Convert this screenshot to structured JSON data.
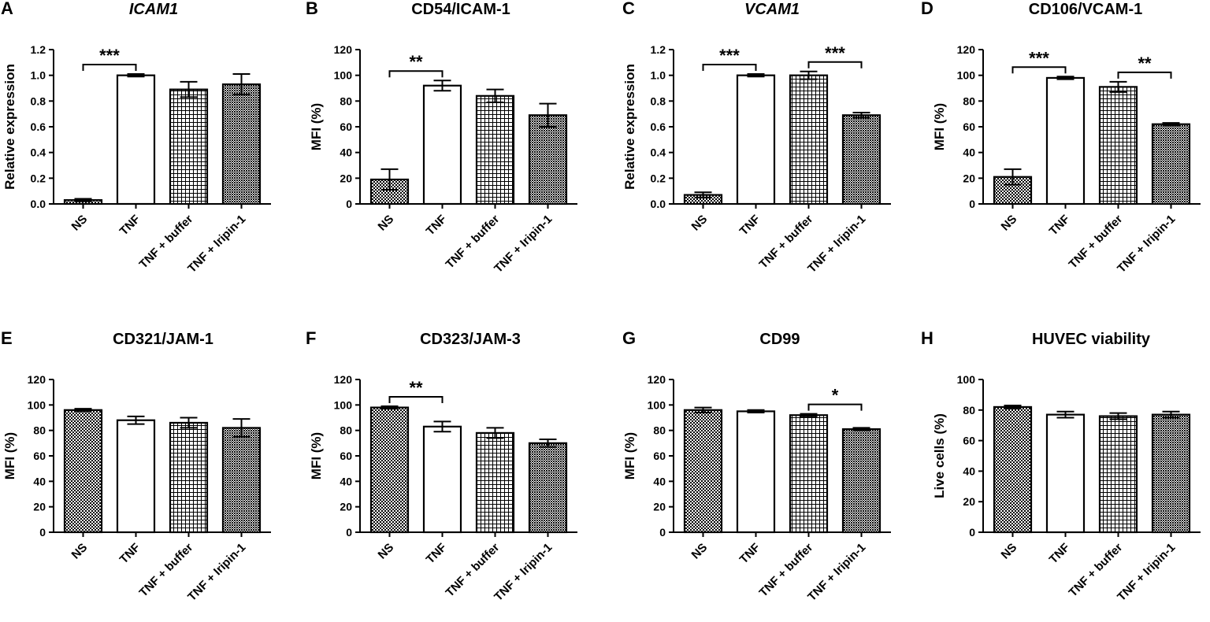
{
  "categories": [
    "NS",
    "TNF",
    "TNF + buffer",
    "TNF + Iripin-1"
  ],
  "colors": {
    "ink": "#000000",
    "bar_outline": "#000000",
    "background": "#ffffff"
  },
  "chart_data": [
    {
      "type": "bar",
      "panel_letter": "A",
      "title": "ICAM1",
      "title_italic": true,
      "ylabel": "Relative expression",
      "ylim": [
        0,
        1.2
      ],
      "yticks": [
        "0.0",
        "0.2",
        "0.4",
        "0.6",
        "0.8",
        "1.0",
        "1.2"
      ],
      "categories": [
        "NS",
        "TNF",
        "TNF + buffer",
        "TNF + Iripin-1"
      ],
      "values": [
        0.03,
        1.0,
        0.89,
        0.93
      ],
      "errors": [
        0.01,
        0.01,
        0.06,
        0.08
      ],
      "significance": [
        {
          "from": 0,
          "to": 1,
          "label": "***"
        }
      ]
    },
    {
      "type": "bar",
      "panel_letter": "B",
      "title": "CD54/ICAM-1",
      "title_italic": false,
      "ylabel": "MFI (%)",
      "ylim": [
        0,
        120
      ],
      "yticks": [
        "0",
        "20",
        "40",
        "60",
        "80",
        "100",
        "120"
      ],
      "categories": [
        "NS",
        "TNF",
        "TNF + buffer",
        "TNF + Iripin-1"
      ],
      "values": [
        19,
        92,
        84,
        69
      ],
      "errors": [
        8,
        4,
        5,
        9
      ],
      "significance": [
        {
          "from": 0,
          "to": 1,
          "label": "**"
        }
      ]
    },
    {
      "type": "bar",
      "panel_letter": "C",
      "title": "VCAM1",
      "title_italic": true,
      "ylabel": "Relative expression",
      "ylim": [
        0,
        1.2
      ],
      "yticks": [
        "0.0",
        "0.2",
        "0.4",
        "0.6",
        "0.8",
        "1.0",
        "1.2"
      ],
      "categories": [
        "NS",
        "TNF",
        "TNF + buffer",
        "TNF + Iripin-1"
      ],
      "values": [
        0.07,
        1.0,
        1.0,
        0.69
      ],
      "errors": [
        0.02,
        0.01,
        0.03,
        0.02
      ],
      "significance": [
        {
          "from": 0,
          "to": 1,
          "label": "***"
        },
        {
          "from": 2,
          "to": 3,
          "label": "***"
        }
      ]
    },
    {
      "type": "bar",
      "panel_letter": "D",
      "title": "CD106/VCAM-1",
      "title_italic": false,
      "ylabel": "MFI (%)",
      "ylim": [
        0,
        120
      ],
      "yticks": [
        "0",
        "20",
        "40",
        "60",
        "80",
        "100",
        "120"
      ],
      "categories": [
        "NS",
        "TNF",
        "TNF + buffer",
        "TNF + Iripin-1"
      ],
      "values": [
        21,
        98,
        91,
        62
      ],
      "errors": [
        6,
        1,
        4,
        1
      ],
      "significance": [
        {
          "from": 0,
          "to": 1,
          "label": "***"
        },
        {
          "from": 2,
          "to": 3,
          "label": "**"
        }
      ]
    },
    {
      "type": "bar",
      "panel_letter": "E",
      "title": "CD321/JAM-1",
      "title_italic": false,
      "ylabel": "MFI (%)",
      "ylim": [
        0,
        120
      ],
      "yticks": [
        "0",
        "20",
        "40",
        "60",
        "80",
        "100",
        "120"
      ],
      "categories": [
        "NS",
        "TNF",
        "TNF + buffer",
        "TNF + Iripin-1"
      ],
      "values": [
        96,
        88,
        86,
        82
      ],
      "errors": [
        1,
        3,
        4,
        7
      ],
      "significance": []
    },
    {
      "type": "bar",
      "panel_letter": "F",
      "title": "CD323/JAM-3",
      "title_italic": false,
      "ylabel": "MFI (%)",
      "ylim": [
        0,
        120
      ],
      "yticks": [
        "0",
        "20",
        "40",
        "60",
        "80",
        "100",
        "120"
      ],
      "categories": [
        "NS",
        "TNF",
        "TNF + buffer",
        "TNF + Iripin-1"
      ],
      "values": [
        98,
        83,
        78,
        70
      ],
      "errors": [
        1,
        4,
        4,
        3
      ],
      "significance": [
        {
          "from": 0,
          "to": 1,
          "label": "**"
        }
      ]
    },
    {
      "type": "bar",
      "panel_letter": "G",
      "title": "CD99",
      "title_italic": false,
      "ylabel": "MFI (%)",
      "ylim": [
        0,
        120
      ],
      "yticks": [
        "0",
        "20",
        "40",
        "60",
        "80",
        "100",
        "120"
      ],
      "categories": [
        "NS",
        "TNF",
        "TNF + buffer",
        "TNF + Iripin-1"
      ],
      "values": [
        96,
        95,
        92,
        81
      ],
      "errors": [
        2,
        1,
        1,
        1
      ],
      "significance": [
        {
          "from": 2,
          "to": 3,
          "label": "*"
        }
      ]
    },
    {
      "type": "bar",
      "panel_letter": "H",
      "title": "HUVEC viability",
      "title_italic": false,
      "ylabel": "Live cells (%)",
      "ylim": [
        0,
        100
      ],
      "yticks": [
        "0",
        "20",
        "40",
        "60",
        "80",
        "100"
      ],
      "categories": [
        "NS",
        "TNF",
        "TNF + buffer",
        "TNF + Iripin-1"
      ],
      "values": [
        82,
        77,
        76,
        77
      ],
      "errors": [
        1,
        2,
        2,
        2
      ],
      "significance": []
    }
  ]
}
